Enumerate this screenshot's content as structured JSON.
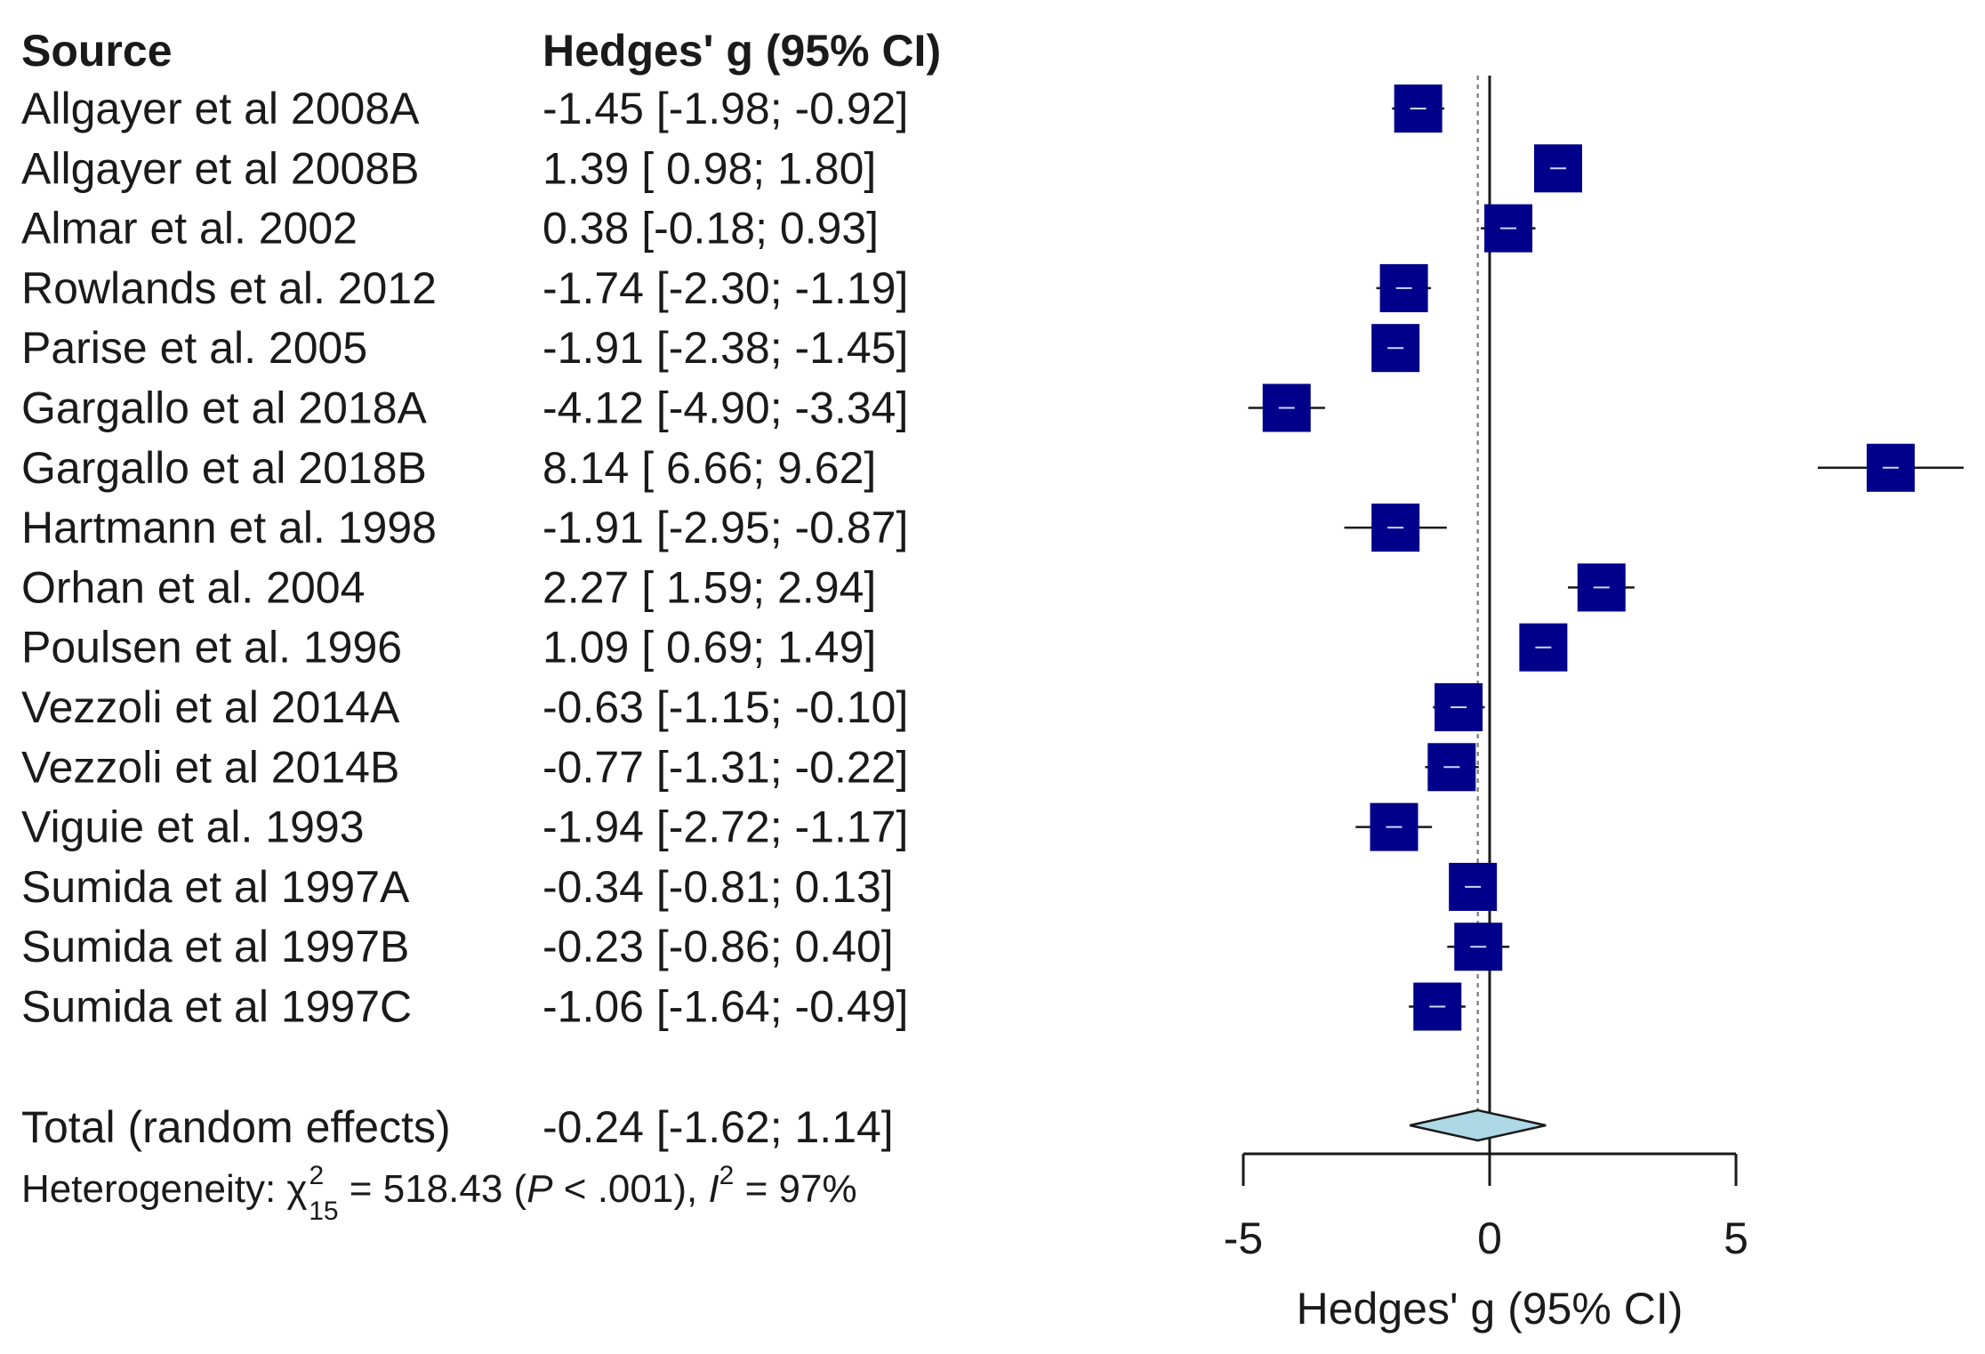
{
  "chart_data": {
    "type": "forest",
    "header": {
      "source": "Source",
      "estimate": "Hedges' g (95% CI)"
    },
    "xlabel": "Hedges' g (95% CI)",
    "xlim": [
      -5,
      5
    ],
    "ticks": [
      "-5",
      "0",
      "5"
    ],
    "tick_values": [
      -5,
      0,
      5
    ],
    "colors": {
      "marker": "#00008b",
      "diamond": "#add8e6",
      "line": "#1a1a1a"
    },
    "studies": [
      {
        "name": "Allgayer et al 2008A",
        "g": -1.45,
        "lo": -1.98,
        "hi": -0.92,
        "ci_text": "-1.45 [-1.98; -0.92]"
      },
      {
        "name": "Allgayer et al 2008B",
        "g": 1.39,
        "lo": 0.98,
        "hi": 1.8,
        "ci_text": "1.39 [ 0.98;  1.80]"
      },
      {
        "name": "Almar et al. 2002",
        "g": 0.38,
        "lo": -0.18,
        "hi": 0.93,
        "ci_text": "0.38 [-0.18;  0.93]"
      },
      {
        "name": "Rowlands et al. 2012",
        "g": -1.74,
        "lo": -2.3,
        "hi": -1.19,
        "ci_text": "-1.74 [-2.30; -1.19]"
      },
      {
        "name": "Parise et al. 2005",
        "g": -1.91,
        "lo": -2.38,
        "hi": -1.45,
        "ci_text": "-1.91 [-2.38; -1.45]"
      },
      {
        "name": "Gargallo et al 2018A",
        "g": -4.12,
        "lo": -4.9,
        "hi": -3.34,
        "ci_text": "-4.12 [-4.90; -3.34]"
      },
      {
        "name": "Gargallo et al 2018B",
        "g": 8.14,
        "lo": 6.66,
        "hi": 9.62,
        "ci_text": "8.14 [ 6.66;  9.62]"
      },
      {
        "name": "Hartmann et al. 1998",
        "g": -1.91,
        "lo": -2.95,
        "hi": -0.87,
        "ci_text": "-1.91 [-2.95; -0.87]"
      },
      {
        "name": "Orhan et al. 2004",
        "g": 2.27,
        "lo": 1.59,
        "hi": 2.94,
        "ci_text": "2.27 [ 1.59;  2.94]"
      },
      {
        "name": "Poulsen et al. 1996",
        "g": 1.09,
        "lo": 0.69,
        "hi": 1.49,
        "ci_text": "1.09 [ 0.69;  1.49]"
      },
      {
        "name": "Vezzoli et al 2014A",
        "g": -0.63,
        "lo": -1.15,
        "hi": -0.1,
        "ci_text": "-0.63 [-1.15; -0.10]"
      },
      {
        "name": "Vezzoli et al 2014B",
        "g": -0.77,
        "lo": -1.31,
        "hi": -0.22,
        "ci_text": "-0.77 [-1.31; -0.22]"
      },
      {
        "name": "Viguie et al. 1993",
        "g": -1.94,
        "lo": -2.72,
        "hi": -1.17,
        "ci_text": "-1.94 [-2.72; -1.17]"
      },
      {
        "name": "Sumida et al 1997A",
        "g": -0.34,
        "lo": -0.81,
        "hi": 0.13,
        "ci_text": "-0.34 [-0.81;  0.13]"
      },
      {
        "name": "Sumida et al 1997B",
        "g": -0.23,
        "lo": -0.86,
        "hi": 0.4,
        "ci_text": "-0.23 [-0.86;  0.40]"
      },
      {
        "name": "Sumida et al 1997C",
        "g": -1.06,
        "lo": -1.64,
        "hi": -0.49,
        "ci_text": "-1.06 [-1.64; -0.49]"
      }
    ],
    "total": {
      "name": "Total (random effects)",
      "g": -0.24,
      "lo": -1.62,
      "hi": 1.14,
      "ci_text": "-0.24 [-1.62;  1.14]"
    },
    "heterogeneity": {
      "label": "Heterogeneity: ",
      "chi_symbol": "χ",
      "chi_sup": "2",
      "chi_sub": "15",
      "chi_value": " = 518.43 (",
      "p_symbol": "P",
      "p_value": " < .001), ",
      "i_symbol": "I",
      "i_sup": "2",
      "i_value": " = 97%"
    }
  }
}
